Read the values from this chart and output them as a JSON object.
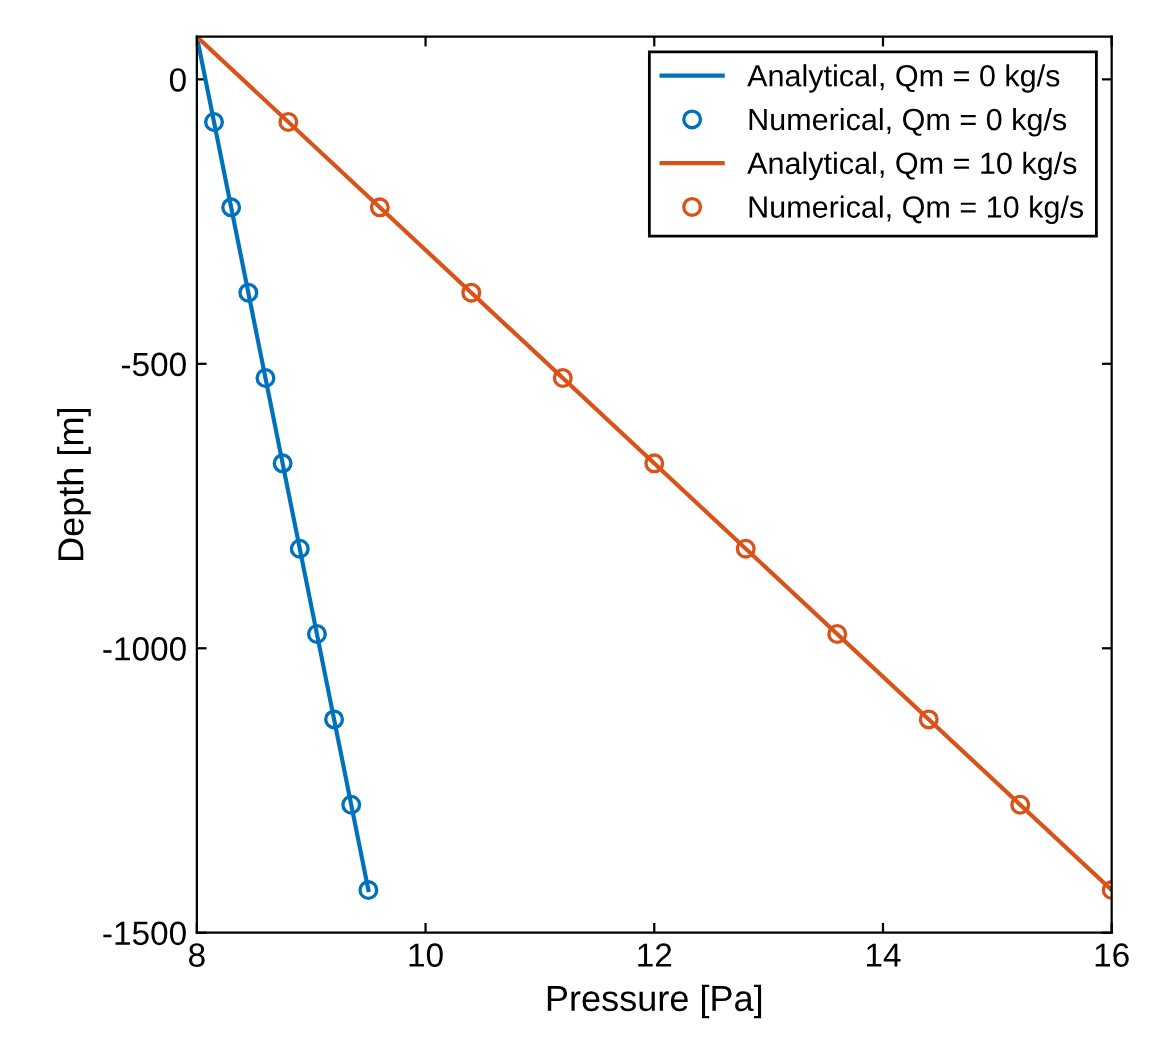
{
  "chart_data": {
    "type": "line",
    "xlabel": "Pressure [Pa]",
    "ylabel": "Depth [m]",
    "xlim": [
      8,
      16
    ],
    "ylim": [
      -1500,
      75
    ],
    "xticks": [
      8,
      10,
      12,
      14,
      16
    ],
    "yticks": [
      0,
      -500,
      -1000,
      -1500
    ],
    "grid": false,
    "legend": "top right",
    "series": [
      {
        "name": "Analytical, Qm = 0 kg/s",
        "color": "#0072bd",
        "marker": "none",
        "line_style": "solid",
        "x": [
          8,
          9.5
        ],
        "values": [
          75,
          -1425
        ]
      },
      {
        "name": "Numerical, Qm = 0 kg/s",
        "type": "scatter",
        "color": "#0072bd",
        "marker": "circle",
        "x": [
          8.15,
          8.3,
          8.45,
          8.6,
          8.75,
          8.9,
          9.05,
          9.2,
          9.35,
          9.5
        ],
        "values": [
          -75,
          -225,
          -375,
          -525,
          -675,
          -825,
          -975,
          -1125,
          -1275,
          -1425
        ]
      },
      {
        "name": "Analytical, Qm = 10 kg/s",
        "color": "#d95319",
        "marker": "none",
        "line_style": "solid",
        "x": [
          8,
          16
        ],
        "values": [
          75,
          -1425
        ]
      },
      {
        "name": "Numerical, Qm = 10 kg/s",
        "type": "scatter",
        "color": "#d95319",
        "marker": "circle",
        "x": [
          8.8,
          9.6,
          10.4,
          11.2,
          12.0,
          12.8,
          13.6,
          14.4,
          15.2,
          16.0
        ],
        "values": [
          -75,
          -225,
          -375,
          -525,
          -675,
          -825,
          -975,
          -1125,
          -1275,
          -1425
        ]
      }
    ]
  }
}
